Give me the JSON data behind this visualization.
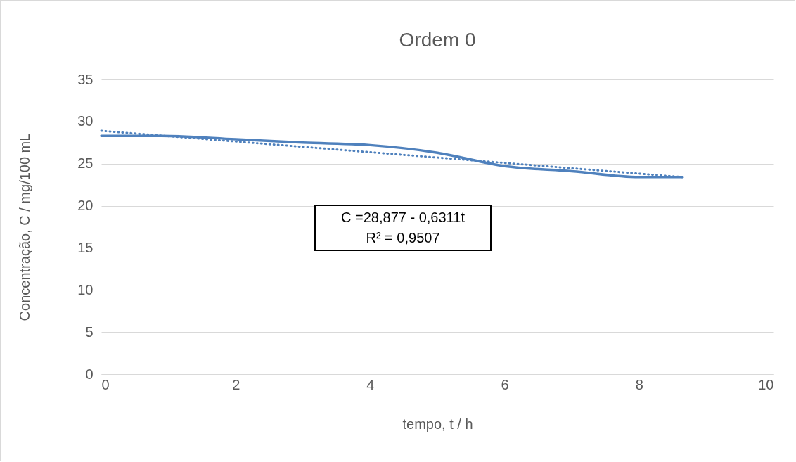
{
  "chart_data": {
    "type": "line",
    "title": "Ordem 0",
    "xlabel": "tempo, t / h",
    "ylabel": "Concentração, C / mg/100 mL",
    "xlim": [
      0,
      10
    ],
    "xticks": [
      0,
      2,
      4,
      6,
      8,
      10
    ],
    "ylim": [
      0,
      35
    ],
    "yticks": [
      0,
      5,
      10,
      15,
      20,
      25,
      30,
      35
    ],
    "grid": "y",
    "marker": "none",
    "series": [
      {
        "color": "#4f81bd",
        "line_style": "solid",
        "x": [
          0,
          0.9,
          2,
          3,
          4,
          5,
          6,
          7,
          8,
          8.65
        ],
        "values": [
          28.3,
          28.3,
          27.9,
          27.5,
          27.2,
          26.3,
          24.7,
          24.1,
          23.4,
          23.4
        ]
      },
      {
        "type": "line",
        "color": "#4f81bd",
        "line_style": "dotted",
        "x": [
          0,
          8.65
        ],
        "values": [
          28.9,
          23.4
        ]
      }
    ],
    "annotations": [
      "C =28,877 - 0,6311t",
      "R² = 0,9507"
    ]
  }
}
